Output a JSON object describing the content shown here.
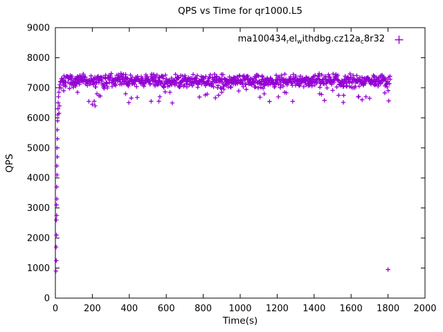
{
  "chart_data": {
    "type": "scatter",
    "title": "QPS vs Time for qr1000.L5",
    "xlabel": "Time(s)",
    "ylabel": "QPS",
    "xlim": [
      0,
      2000
    ],
    "ylim": [
      0,
      9000
    ],
    "xticks": [
      0,
      200,
      400,
      600,
      800,
      1000,
      1200,
      1400,
      1600,
      1800,
      2000
    ],
    "yticks": [
      0,
      1000,
      2000,
      3000,
      4000,
      5000,
      6000,
      7000,
      8000,
      9000
    ],
    "grid": false,
    "legend_position": "top-right",
    "series": [
      {
        "name": "ma100434_rel_withdbg.cz12a_c8r32",
        "legend_parts": [
          {
            "text": "ma100434",
            "sub": false
          },
          {
            "text": "r",
            "sub": true
          },
          {
            "text": "el",
            "sub": false
          },
          {
            "text": "w",
            "sub": true
          },
          {
            "text": "ithdbg.cz12a",
            "sub": false
          },
          {
            "text": "c",
            "sub": true
          },
          {
            "text": "8r32",
            "sub": false
          }
        ],
        "color": "#9400d3",
        "marker": "plus",
        "ramp_points": [
          [
            3,
            900
          ],
          [
            5,
            1250
          ],
          [
            4,
            1700
          ],
          [
            6,
            2100
          ],
          [
            5,
            2600
          ],
          [
            7,
            2750
          ],
          [
            6,
            3100
          ],
          [
            8,
            3300
          ],
          [
            7,
            3700
          ],
          [
            9,
            4100
          ],
          [
            8,
            4400
          ],
          [
            10,
            4700
          ],
          [
            9,
            5000
          ],
          [
            11,
            5300
          ],
          [
            10,
            5600
          ],
          [
            12,
            5900
          ],
          [
            13,
            6100
          ],
          [
            14,
            6300
          ],
          [
            15,
            6500
          ],
          [
            17,
            6700
          ],
          [
            19,
            6850
          ],
          [
            21,
            7000
          ],
          [
            24,
            7100
          ],
          [
            27,
            7200
          ],
          [
            20,
            6150
          ],
          [
            22,
            6400
          ]
        ],
        "dips": [
          [
            45,
            6900
          ],
          [
            120,
            6850
          ],
          [
            200,
            6450
          ],
          [
            210,
            6550
          ],
          [
            215,
            6400
          ],
          [
            225,
            6800
          ],
          [
            380,
            6800
          ],
          [
            560,
            6550
          ],
          [
            565,
            6700
          ],
          [
            620,
            6850
          ],
          [
            900,
            6850
          ],
          [
            1130,
            6800
          ],
          [
            1240,
            6850
          ],
          [
            1430,
            6800
          ],
          [
            1560,
            6750
          ],
          [
            1660,
            6600
          ],
          [
            1680,
            6700
          ],
          [
            1700,
            6650
          ]
        ],
        "outliers": [
          [
            1800,
            950
          ]
        ],
        "steady_band": {
          "x_start": 30,
          "x_end": 1812,
          "step": 2,
          "y_center": 7230,
          "y_spread": 260,
          "dip_prob": 0.05,
          "dip_max": 700,
          "seed": 7
        }
      }
    ]
  }
}
